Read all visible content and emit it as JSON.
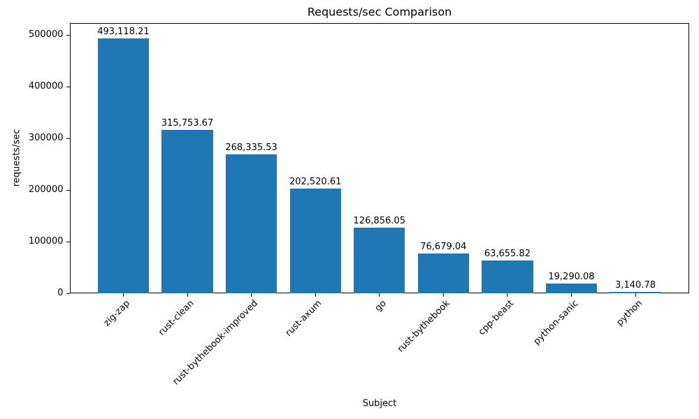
{
  "chart_data": {
    "type": "bar",
    "title": "Requests/sec Comparison",
    "xlabel": "Subject",
    "ylabel": "requests/sec",
    "categories": [
      "zig-zap",
      "rust-clean",
      "rust-bythebook-improved",
      "rust-axum",
      "go",
      "rust-bythebook",
      "cpp-beast",
      "python-sanic",
      "python"
    ],
    "values": [
      493118.21,
      315753.67,
      268335.53,
      202520.61,
      126856.05,
      76679.04,
      63655.82,
      19290.08,
      3140.78
    ],
    "value_labels": [
      "493,118.21",
      "315,753.67",
      "268,335.53",
      "202,520.61",
      "126,856.05",
      "76,679.04",
      "63,655.82",
      "19,290.08",
      "3,140.78"
    ],
    "yticks": [
      0,
      100000,
      200000,
      300000,
      400000,
      500000
    ],
    "ytick_labels": [
      "0",
      "100000",
      "200000",
      "300000",
      "400000",
      "500000"
    ],
    "ylim": [
      0,
      523000
    ],
    "bar_color": "#1f77b4",
    "grid": false,
    "legend_position": "none"
  }
}
